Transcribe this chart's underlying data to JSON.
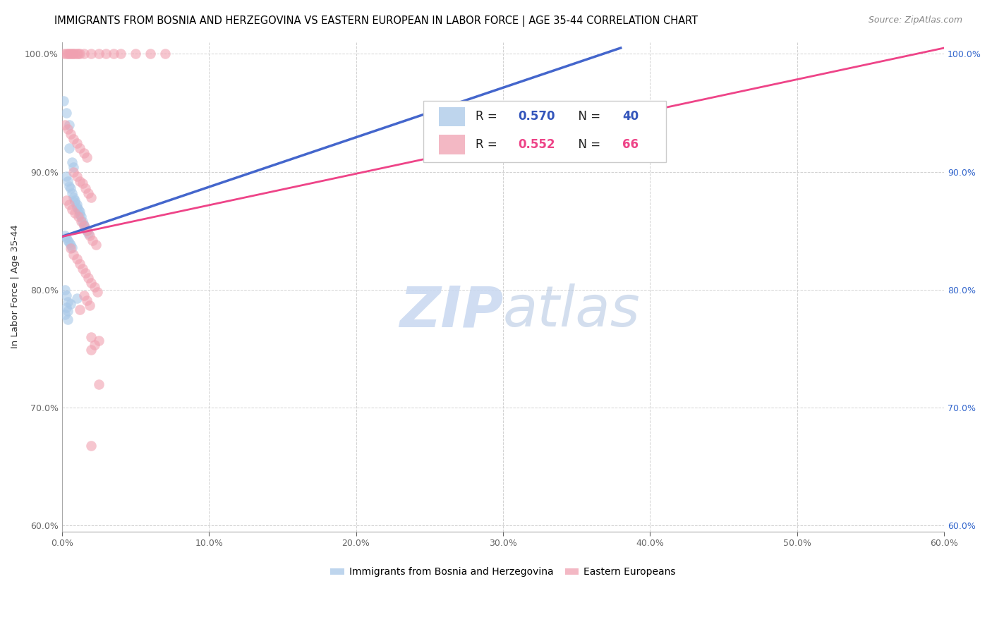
{
  "title": "IMMIGRANTS FROM BOSNIA AND HERZEGOVINA VS EASTERN EUROPEAN IN LABOR FORCE | AGE 35-44 CORRELATION CHART",
  "source": "Source: ZipAtlas.com",
  "ylabel": "In Labor Force | Age 35-44",
  "xlim": [
    0.0,
    0.6
  ],
  "ylim": [
    0.595,
    1.01
  ],
  "xticks": [
    0.0,
    0.1,
    0.2,
    0.3,
    0.4,
    0.5,
    0.6
  ],
  "yticks_left": [
    0.6,
    0.7,
    0.8,
    0.9,
    1.0
  ],
  "yticks_right": [
    0.6,
    0.7,
    0.8,
    0.9,
    1.0
  ],
  "blue_R": 0.57,
  "blue_N": 40,
  "pink_R": 0.552,
  "pink_N": 66,
  "blue_color": "#A8C8E8",
  "pink_color": "#F0A0B0",
  "blue_line_color": "#4466CC",
  "pink_line_color": "#EE4488",
  "legend_label_blue": "Immigrants from Bosnia and Herzegovina",
  "legend_label_pink": "Eastern Europeans",
  "blue_line": [
    [
      0.0,
      0.845
    ],
    [
      0.38,
      1.005
    ]
  ],
  "pink_line": [
    [
      0.0,
      0.845
    ],
    [
      0.6,
      1.005
    ]
  ],
  "blue_points": [
    [
      0.001,
      0.96
    ],
    [
      0.003,
      0.95
    ],
    [
      0.005,
      0.94
    ],
    [
      0.005,
      0.92
    ],
    [
      0.007,
      0.908
    ],
    [
      0.008,
      0.904
    ],
    [
      0.003,
      0.896
    ],
    [
      0.004,
      0.892
    ],
    [
      0.005,
      0.888
    ],
    [
      0.006,
      0.886
    ],
    [
      0.007,
      0.882
    ],
    [
      0.008,
      0.878
    ],
    [
      0.009,
      0.876
    ],
    [
      0.009,
      0.874
    ],
    [
      0.01,
      0.872
    ],
    [
      0.01,
      0.87
    ],
    [
      0.011,
      0.868
    ],
    [
      0.012,
      0.866
    ],
    [
      0.012,
      0.864
    ],
    [
      0.013,
      0.862
    ],
    [
      0.014,
      0.858
    ],
    [
      0.015,
      0.855
    ],
    [
      0.016,
      0.852
    ],
    [
      0.017,
      0.85
    ],
    [
      0.018,
      0.848
    ],
    [
      0.002,
      0.846
    ],
    [
      0.003,
      0.844
    ],
    [
      0.004,
      0.842
    ],
    [
      0.005,
      0.84
    ],
    [
      0.006,
      0.838
    ],
    [
      0.007,
      0.836
    ],
    [
      0.002,
      0.8
    ],
    [
      0.003,
      0.795
    ],
    [
      0.01,
      0.793
    ],
    [
      0.004,
      0.79
    ],
    [
      0.006,
      0.788
    ],
    [
      0.003,
      0.785
    ],
    [
      0.004,
      0.782
    ],
    [
      0.002,
      0.779
    ],
    [
      0.004,
      0.775
    ]
  ],
  "pink_points": [
    [
      0.001,
      1.0
    ],
    [
      0.003,
      1.0
    ],
    [
      0.004,
      1.0
    ],
    [
      0.005,
      1.0
    ],
    [
      0.006,
      1.0
    ],
    [
      0.007,
      1.0
    ],
    [
      0.008,
      1.0
    ],
    [
      0.009,
      1.0
    ],
    [
      0.01,
      1.0
    ],
    [
      0.011,
      1.0
    ],
    [
      0.012,
      1.0
    ],
    [
      0.015,
      1.0
    ],
    [
      0.02,
      1.0
    ],
    [
      0.025,
      1.0
    ],
    [
      0.03,
      1.0
    ],
    [
      0.035,
      1.0
    ],
    [
      0.04,
      1.0
    ],
    [
      0.05,
      1.0
    ],
    [
      0.06,
      1.0
    ],
    [
      0.07,
      1.0
    ],
    [
      0.002,
      0.94
    ],
    [
      0.004,
      0.936
    ],
    [
      0.006,
      0.932
    ],
    [
      0.008,
      0.928
    ],
    [
      0.01,
      0.924
    ],
    [
      0.012,
      0.92
    ],
    [
      0.015,
      0.916
    ],
    [
      0.017,
      0.912
    ],
    [
      0.008,
      0.9
    ],
    [
      0.01,
      0.896
    ],
    [
      0.012,
      0.892
    ],
    [
      0.014,
      0.89
    ],
    [
      0.016,
      0.886
    ],
    [
      0.018,
      0.882
    ],
    [
      0.02,
      0.878
    ],
    [
      0.003,
      0.876
    ],
    [
      0.005,
      0.872
    ],
    [
      0.007,
      0.868
    ],
    [
      0.009,
      0.865
    ],
    [
      0.011,
      0.862
    ],
    [
      0.013,
      0.858
    ],
    [
      0.015,
      0.854
    ],
    [
      0.017,
      0.85
    ],
    [
      0.019,
      0.846
    ],
    [
      0.021,
      0.842
    ],
    [
      0.023,
      0.838
    ],
    [
      0.006,
      0.835
    ],
    [
      0.008,
      0.83
    ],
    [
      0.01,
      0.826
    ],
    [
      0.012,
      0.822
    ],
    [
      0.014,
      0.818
    ],
    [
      0.016,
      0.814
    ],
    [
      0.018,
      0.81
    ],
    [
      0.02,
      0.806
    ],
    [
      0.022,
      0.802
    ],
    [
      0.024,
      0.798
    ],
    [
      0.015,
      0.795
    ],
    [
      0.017,
      0.791
    ],
    [
      0.019,
      0.787
    ],
    [
      0.012,
      0.783
    ],
    [
      0.02,
      0.76
    ],
    [
      0.025,
      0.757
    ],
    [
      0.022,
      0.753
    ],
    [
      0.02,
      0.749
    ],
    [
      0.025,
      0.72
    ],
    [
      0.02,
      0.668
    ]
  ],
  "watermark_zip": "ZIP",
  "watermark_atlas": "atlas",
  "title_fontsize": 10.5,
  "axis_label_fontsize": 9.5,
  "tick_fontsize": 9,
  "source_fontsize": 9
}
